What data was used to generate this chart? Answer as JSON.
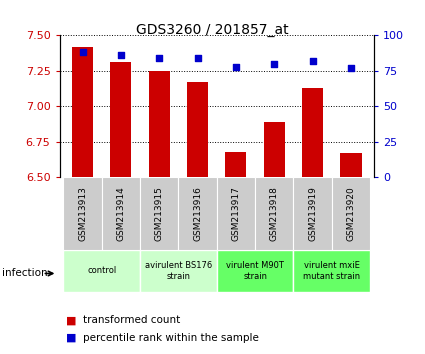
{
  "title": "GDS3260 / 201857_at",
  "samples": [
    "GSM213913",
    "GSM213914",
    "GSM213915",
    "GSM213916",
    "GSM213917",
    "GSM213918",
    "GSM213919",
    "GSM213920"
  ],
  "transformed_counts": [
    7.42,
    7.31,
    7.25,
    7.17,
    6.68,
    6.89,
    7.13,
    6.67
  ],
  "percentile_ranks": [
    88,
    86,
    84,
    84,
    78,
    80,
    82,
    77
  ],
  "ylim_left": [
    6.5,
    7.5
  ],
  "ylim_right": [
    0,
    100
  ],
  "yticks_left": [
    6.5,
    6.75,
    7.0,
    7.25,
    7.5
  ],
  "yticks_right": [
    0,
    25,
    50,
    75,
    100
  ],
  "bar_color": "#cc0000",
  "dot_color": "#0000cc",
  "groups": [
    {
      "label": "control",
      "samples": [
        0,
        1
      ],
      "color": "#ccffcc"
    },
    {
      "label": "avirulent BS176\nstrain",
      "samples": [
        2,
        3
      ],
      "color": "#ccffcc"
    },
    {
      "label": "virulent M90T\nstrain",
      "samples": [
        4,
        5
      ],
      "color": "#66ff66"
    },
    {
      "label": "virulent mxiE\nmutant strain",
      "samples": [
        6,
        7
      ],
      "color": "#66ff66"
    }
  ],
  "left_axis_color": "#cc0000",
  "right_axis_color": "#0000cc",
  "infection_label": "infection",
  "legend_items": [
    {
      "color": "#cc0000",
      "label": "transformed count"
    },
    {
      "color": "#0000cc",
      "label": "percentile rank within the sample"
    }
  ],
  "sample_bg_color": "#cccccc",
  "fig_width": 4.25,
  "fig_height": 3.54,
  "dpi": 100
}
